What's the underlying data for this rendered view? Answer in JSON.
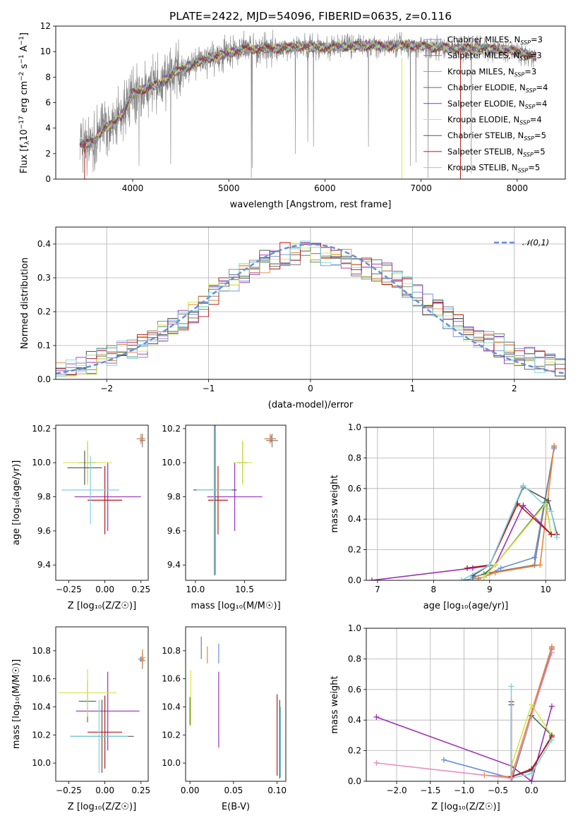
{
  "figure_title": "PLATE=2422, MJD=54096, FIBERID=0635, z=0.116",
  "colors": {
    "Chabrier MILES": "#6a8fd8",
    "Salpeter MILES": "#7f7f7f",
    "Kroupa MILES": "#e8853a",
    "Chabrier ELODIE": "#4a7a4a",
    "Salpeter ELODIE": "#9b30b4",
    "Kroupa ELODIE": "#d8e34a",
    "Chabrier STELIB": "#555555",
    "Salpeter STELIB": "#b11a1a",
    "Kroupa STELIB": "#7fd3e0"
  },
  "chart_data": [
    {
      "id": "spectrum",
      "type": "line",
      "title": "PLATE=2422, MJD=54096, FIBERID=0635, z=0.116",
      "xlabel": "wavelength [Angstrom, rest frame]",
      "ylabel": "Flux [f_λ 10^-17 erg cm^-2 s^-1 A^-1]",
      "xlim": [
        3200,
        8500
      ],
      "ylim": [
        0,
        12
      ],
      "xticks": [
        4000,
        5000,
        6000,
        7000,
        8000
      ],
      "yticks": [
        0,
        2,
        4,
        6,
        8,
        10,
        12
      ],
      "legend_position": "right",
      "series": [
        {
          "name": "Chabrier MILES, N_SSP=3",
          "color": "#6a8fd8"
        },
        {
          "name": "Salpeter MILES, N_SSP=3",
          "color": "#7f7f7f"
        },
        {
          "name": "Kroupa MILES, N_SSP=3",
          "color": "#e8853a"
        },
        {
          "name": "Chabrier ELODIE, N_SSP=4",
          "color": "#4a7a4a"
        },
        {
          "name": "Salpeter ELODIE, N_SSP=4",
          "color": "#9b30b4"
        },
        {
          "name": "Kroupa ELODIE, N_SSP=4",
          "color": "#d8e34a"
        },
        {
          "name": "Chabrier STELIB, N_SSP=5",
          "color": "#555555"
        },
        {
          "name": "Salpeter STELIB, N_SSP=5",
          "color": "#b11a1a"
        },
        {
          "name": "Kroupa STELIB, N_SSP=5",
          "color": "#7fd3e0"
        }
      ],
      "continuum": {
        "x": [
          3450,
          3500,
          3600,
          3700,
          3800,
          3900,
          4000,
          4100,
          4200,
          4300,
          4400,
          4500,
          4600,
          4800,
          5000,
          5200,
          5400,
          5600,
          5800,
          6000,
          6200,
          6400,
          6600,
          6800,
          7000,
          7200,
          7400,
          7600,
          7800,
          8000,
          8200
        ],
        "y": [
          2.8,
          2.7,
          3.0,
          4.0,
          4.3,
          5.2,
          6.7,
          7.0,
          7.3,
          7.5,
          8.2,
          8.6,
          8.9,
          9.5,
          9.9,
          10.2,
          10.2,
          10.3,
          10.4,
          10.3,
          10.4,
          10.5,
          10.4,
          10.5,
          10.4,
          10.3,
          10.2,
          10.3,
          10.2,
          10.0,
          9.6
        ]
      }
    },
    {
      "id": "residuals",
      "type": "line",
      "xlabel": "(data-model)/error",
      "ylabel": "Normed distribution",
      "xlim": [
        -2.5,
        2.5
      ],
      "ylim": [
        0,
        0.45
      ],
      "xticks": [
        -2,
        -1,
        0,
        1,
        2
      ],
      "yticks": [
        0.0,
        0.1,
        0.2,
        0.3,
        0.4
      ],
      "grid": true,
      "legend_position": "top-right",
      "reference": {
        "name": "𝒩(0,1)",
        "mean": 0,
        "sigma": 1,
        "color": "#6a8fd8"
      },
      "bins": [
        -2.45,
        -2.35,
        -2.25,
        -2.15,
        -2.05,
        -1.95,
        -1.85,
        -1.75,
        -1.65,
        -1.55,
        -1.45,
        -1.35,
        -1.25,
        -1.15,
        -1.05,
        -0.95,
        -0.85,
        -0.75,
        -0.65,
        -0.55,
        -0.45,
        -0.35,
        -0.25,
        -0.15,
        -0.05,
        0.05,
        0.15,
        0.25,
        0.35,
        0.45,
        0.55,
        0.65,
        0.75,
        0.85,
        0.95,
        1.05,
        1.15,
        1.25,
        1.35,
        1.45,
        1.55,
        1.65,
        1.75,
        1.85,
        1.95,
        2.05,
        2.15,
        2.25,
        2.35,
        2.45
      ],
      "envelope": [
        0.02,
        0.03,
        0.04,
        0.05,
        0.06,
        0.07,
        0.08,
        0.09,
        0.1,
        0.12,
        0.14,
        0.16,
        0.18,
        0.2,
        0.22,
        0.25,
        0.27,
        0.29,
        0.31,
        0.33,
        0.35,
        0.36,
        0.37,
        0.37,
        0.38,
        0.38,
        0.37,
        0.36,
        0.35,
        0.34,
        0.33,
        0.32,
        0.31,
        0.29,
        0.27,
        0.25,
        0.22,
        0.2,
        0.18,
        0.16,
        0.14,
        0.12,
        0.11,
        0.1,
        0.08,
        0.07,
        0.06,
        0.05,
        0.04,
        0.04
      ]
    },
    {
      "id": "age_vs_Z",
      "type": "scatter",
      "xlabel": "Z [log10(Z/Z_sun)]",
      "ylabel": "age [log10(age/yr)]",
      "xlim": [
        -0.34,
        0.3
      ],
      "ylim": [
        9.31,
        10.22
      ],
      "xticks": [
        -0.25,
        0.0,
        0.25
      ],
      "xticklabels": [
        "−0.25",
        "0.00",
        "0.25"
      ],
      "yticks": [
        9.4,
        9.6,
        9.8,
        10.0,
        10.2
      ],
      "points": [
        {
          "series": "Chabrier MILES",
          "x": 0.25,
          "y": 10.14,
          "xerr": 0.02,
          "yerr": 0.02
        },
        {
          "series": "Salpeter MILES",
          "x": 0.26,
          "y": 10.13,
          "xerr": 0.02,
          "yerr": 0.04
        },
        {
          "series": "Kroupa MILES",
          "x": 0.25,
          "y": 10.14,
          "xerr": 0.03,
          "yerr": 0.03
        },
        {
          "series": "Chabrier ELODIE",
          "x": -0.12,
          "y": 10.0,
          "xerr": 0.06,
          "yerr": 0.12
        },
        {
          "series": "Salpeter ELODIE",
          "x": 0.02,
          "y": 9.8,
          "xerr": 0.23,
          "yerr": 0.2
        },
        {
          "series": "Kroupa ELODIE",
          "x": -0.12,
          "y": 10.0,
          "xerr": 0.17,
          "yerr": 0.13
        },
        {
          "series": "Chabrier STELIB",
          "x": -0.14,
          "y": 9.97,
          "xerr": 0.12,
          "yerr": 0.1
        },
        {
          "series": "Salpeter STELIB",
          "x": 0.0,
          "y": 9.78,
          "xerr": 0.12,
          "yerr": 0.2
        },
        {
          "series": "Kroupa STELIB",
          "x": -0.1,
          "y": 9.84,
          "xerr": 0.2,
          "yerr": 0.2
        }
      ]
    },
    {
      "id": "age_vs_mass",
      "type": "scatter",
      "xlabel": "mass [log10(M/M_sun)]",
      "ylabel": "",
      "xlim": [
        9.9,
        10.92
      ],
      "ylim": [
        9.31,
        10.22
      ],
      "xticks": [
        10.0,
        10.5
      ],
      "yticks": [
        9.4,
        9.6,
        9.8,
        10.0,
        10.2
      ],
      "points": [
        {
          "series": "Chabrier MILES",
          "x": 10.77,
          "y": 10.14,
          "xerr": 0.05,
          "yerr": 0.02
        },
        {
          "series": "Salpeter MILES",
          "x": 10.78,
          "y": 10.13,
          "xerr": 0.06,
          "yerr": 0.04
        },
        {
          "series": "Kroupa MILES",
          "x": 10.76,
          "y": 10.14,
          "xerr": 0.06,
          "yerr": 0.03
        },
        {
          "series": "Chabrier ELODIE",
          "x": 10.48,
          "y": 10.0,
          "xerr": 0.05,
          "yerr": 0.12
        },
        {
          "series": "Salpeter ELODIE",
          "x": 10.4,
          "y": 9.8,
          "xerr": 0.28,
          "yerr": 0.2
        },
        {
          "series": "Kroupa ELODIE",
          "x": 10.48,
          "y": 10.0,
          "xerr": 0.1,
          "yerr": 0.13
        },
        {
          "series": "Chabrier STELIB",
          "x": 10.2,
          "y": 9.84,
          "xerr": 0.22,
          "yerr": 0.5
        },
        {
          "series": "Salpeter STELIB",
          "x": 10.23,
          "y": 9.78,
          "xerr": 0.1,
          "yerr": 0.2
        },
        {
          "series": "Kroupa STELIB",
          "x": 10.19,
          "y": 9.84,
          "xerr": 0.18,
          "yerr": 0.5
        }
      ]
    },
    {
      "id": "weight_vs_age",
      "type": "line",
      "xlabel": "age [log10(age/yr)]",
      "ylabel": "mass weight",
      "xlim": [
        6.8,
        10.35
      ],
      "ylim": [
        0,
        1
      ],
      "xticks": [
        7,
        8,
        9,
        10
      ],
      "yticks": [
        0.0,
        0.2,
        0.4,
        0.6,
        0.8,
        1.0
      ],
      "grid": true,
      "series": [
        {
          "name": "Chabrier MILES",
          "x": [
            8.5,
            8.9,
            9.2,
            9.8,
            10.15
          ],
          "y": [
            0.0,
            0.02,
            0.08,
            0.15,
            0.86
          ]
        },
        {
          "name": "Salpeter MILES",
          "x": [
            8.7,
            9.0,
            9.8,
            10.15
          ],
          "y": [
            0.02,
            0.05,
            0.1,
            0.87
          ]
        },
        {
          "name": "Kroupa MILES",
          "x": [
            8.8,
            9.1,
            9.9,
            10.15
          ],
          "y": [
            0.01,
            0.05,
            0.1,
            0.88
          ]
        },
        {
          "name": "Chabrier ELODIE",
          "x": [
            8.9,
            9.1,
            10.0,
            10.1
          ],
          "y": [
            0.04,
            0.1,
            0.51,
            0.3
          ]
        },
        {
          "name": "Salpeter ELODIE",
          "x": [
            6.9,
            8.7,
            9.1,
            9.6,
            10.1
          ],
          "y": [
            0.0,
            0.08,
            0.1,
            0.49,
            0.3
          ]
        },
        {
          "name": "Kroupa ELODIE",
          "x": [
            8.9,
            9.1,
            10.0,
            10.1
          ],
          "y": [
            0.02,
            0.1,
            0.5,
            0.3
          ]
        },
        {
          "name": "Chabrier STELIB",
          "x": [
            8.7,
            9.0,
            9.6,
            10.05,
            10.2
          ],
          "y": [
            0.03,
            0.1,
            0.61,
            0.52,
            0.3
          ]
        },
        {
          "name": "Salpeter STELIB",
          "x": [
            8.6,
            9.0,
            9.5,
            10.1,
            10.2
          ],
          "y": [
            0.08,
            0.1,
            0.5,
            0.3,
            0.3
          ]
        },
        {
          "name": "Kroupa STELIB",
          "x": [
            8.5,
            9.0,
            9.6,
            10.1,
            10.2
          ],
          "y": [
            0.0,
            0.1,
            0.62,
            0.45,
            0.28
          ]
        }
      ]
    },
    {
      "id": "mass_vs_Z",
      "type": "scatter",
      "xlabel": "Z [log10(Z/Z_sun)]",
      "ylabel": "mass [log10(M/M_sun)]",
      "xlim": [
        -0.34,
        0.3
      ],
      "ylim": [
        9.87,
        10.97
      ],
      "xticks": [
        -0.25,
        0.0,
        0.25
      ],
      "xticklabels": [
        "−0.25",
        "0.00",
        "0.25"
      ],
      "yticks": [
        10.0,
        10.2,
        10.4,
        10.6,
        10.8
      ],
      "points": [
        {
          "series": "Chabrier MILES",
          "x": 0.25,
          "y": 10.74,
          "xerr": 0.02,
          "yerr": 0.02
        },
        {
          "series": "Salpeter MILES",
          "x": 0.26,
          "y": 10.73,
          "xerr": 0.02,
          "yerr": 0.06
        },
        {
          "series": "Kroupa MILES",
          "x": 0.26,
          "y": 10.75,
          "xerr": 0.02,
          "yerr": 0.06
        },
        {
          "series": "Chabrier ELODIE",
          "x": -0.12,
          "y": 10.44,
          "xerr": 0.06,
          "yerr": 0.15
        },
        {
          "series": "Salpeter ELODIE",
          "x": 0.02,
          "y": 10.37,
          "xerr": 0.22,
          "yerr": 0.28
        },
        {
          "series": "Kroupa ELODIE",
          "x": -0.12,
          "y": 10.5,
          "xerr": 0.2,
          "yerr": 0.17
        },
        {
          "series": "Chabrier STELIB",
          "x": -0.02,
          "y": 10.19,
          "xerr": 0.22,
          "yerr": 0.26
        },
        {
          "series": "Salpeter STELIB",
          "x": 0.0,
          "y": 10.22,
          "xerr": 0.12,
          "yerr": 0.26
        },
        {
          "series": "Kroupa STELIB",
          "x": -0.04,
          "y": 10.19,
          "xerr": 0.2,
          "yerr": 0.26
        }
      ]
    },
    {
      "id": "mass_vs_EBV",
      "type": "scatter",
      "xlabel": "E(B-V)",
      "ylabel": "",
      "xlim": [
        -0.005,
        0.11
      ],
      "ylim": [
        9.87,
        10.97
      ],
      "xticks": [
        0.0,
        0.05,
        0.1
      ],
      "xticklabels": [
        "0.00",
        "0.05",
        "0.10"
      ],
      "yticks": [
        10.0,
        10.2,
        10.4,
        10.6,
        10.8
      ],
      "points": [
        {
          "series": "Chabrier MILES",
          "x": 0.033,
          "y": 10.78,
          "yerr": 0.07
        },
        {
          "series": "Salpeter MILES",
          "x": 0.013,
          "y": 10.82,
          "yerr": 0.08
        },
        {
          "series": "Kroupa MILES",
          "x": 0.02,
          "y": 10.77,
          "yerr": 0.06
        },
        {
          "series": "Chabrier ELODIE",
          "x": 0.0,
          "y": 10.37,
          "yerr": 0.1
        },
        {
          "series": "Salpeter ELODIE",
          "x": 0.033,
          "y": 10.38,
          "yerr": 0.27
        },
        {
          "series": "Kroupa ELODIE",
          "x": 0.001,
          "y": 10.46,
          "yerr": 0.2
        },
        {
          "series": "Chabrier STELIB",
          "x": 0.103,
          "y": 10.17,
          "yerr": 0.28
        },
        {
          "series": "Salpeter STELIB",
          "x": 0.1,
          "y": 10.2,
          "yerr": 0.29
        },
        {
          "series": "Kroupa STELIB",
          "x": 0.104,
          "y": 10.15,
          "yerr": 0.25
        }
      ]
    },
    {
      "id": "weight_vs_Z",
      "type": "line",
      "xlabel": "Z [log10(Z/Z_sun)]",
      "ylabel": "mass weight",
      "xlim": [
        -2.45,
        0.5
      ],
      "ylim": [
        0,
        1
      ],
      "xticks": [
        -2.0,
        -1.5,
        -1.0,
        -0.5,
        0.0
      ],
      "xticklabels": [
        "−2.0",
        "−1.5",
        "−1.0",
        "−0.5",
        "0.0"
      ],
      "yticks": [
        0.0,
        0.2,
        0.4,
        0.6,
        0.8,
        1.0
      ],
      "grid": true,
      "series": [
        {
          "name": "Chabrier MILES",
          "x": [
            -1.3,
            -0.3,
            0.3
          ],
          "y": [
            0.14,
            0.02,
            0.86
          ]
        },
        {
          "name": "Salpeter MILES",
          "x": [
            -0.3,
            -0.3,
            0.3
          ],
          "y": [
            0.1,
            0.02,
            0.87
          ]
        },
        {
          "name": "Kroupa MILES",
          "x": [
            -0.7,
            -0.3,
            0.3
          ],
          "y": [
            0.04,
            0.03,
            0.88
          ]
        },
        {
          "name": "Chabrier ELODIE",
          "x": [
            -0.3,
            -0.3,
            0.0,
            0.3
          ],
          "y": [
            0.02,
            0.0,
            0.43,
            0.3
          ]
        },
        {
          "name": "Salpeter ELODIE",
          "x": [
            -2.3,
            -0.3,
            0.0,
            0.3
          ],
          "y": [
            0.42,
            0.1,
            0.0,
            0.49
          ]
        },
        {
          "name": "Kroupa ELODIE",
          "x": [
            -0.3,
            -0.3,
            0.0,
            0.3
          ],
          "y": [
            0.02,
            0.1,
            0.5,
            0.3
          ]
        },
        {
          "name": "Chabrier STELIB",
          "x": [
            -0.3,
            -0.3,
            0.0,
            0.3
          ],
          "y": [
            0.5,
            0.03,
            0.07,
            0.3
          ]
        },
        {
          "name": "Salpeter STELIB",
          "x": [
            -0.3,
            -0.3,
            0.0,
            0.3
          ],
          "y": [
            0.52,
            0.03,
            0.08,
            0.29
          ]
        },
        {
          "name": "Kroupa STELIB",
          "x": [
            -0.3,
            -0.3,
            0.0,
            0.3
          ],
          "y": [
            0.62,
            0.02,
            0.05,
            0.27
          ]
        },
        {
          "name": "pink",
          "x": [
            -2.3,
            -0.3,
            0.3
          ],
          "y": [
            0.12,
            0.02,
            0.84
          ]
        }
      ]
    }
  ],
  "text": {
    "spec_ylabel_a": "Flux [f",
    "spec_ylabel_b": "λ",
    "spec_ylabel_c": "10",
    "spec_ylabel_d": "−17",
    "spec_ylabel_e": " erg cm",
    "spec_ylabel_f": "−2",
    "spec_ylabel_g": " s",
    "spec_ylabel_h": "−1",
    "spec_ylabel_i": " A",
    "spec_ylabel_j": "−1",
    "spec_ylabel_k": "]",
    "legend_ssp": "SSP"
  }
}
